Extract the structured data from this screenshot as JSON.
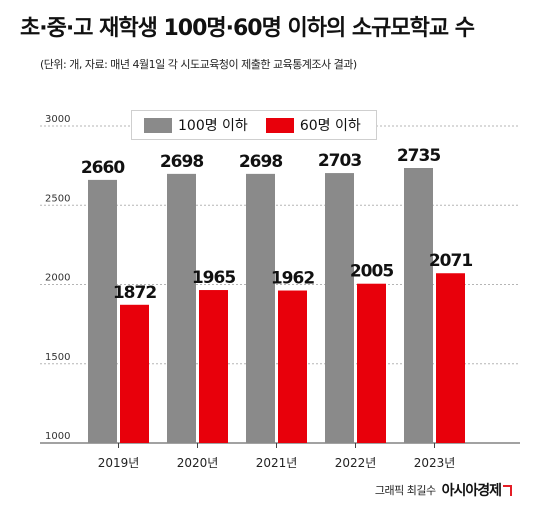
{
  "title": "초·중·고 재학생 100명·60명 이하의 소규모학교 수",
  "subtitle": "(단위: 개, 자료: 매년 4월1일 각 시도교육청이 제출한 교육통계조사 결과)",
  "credit": {
    "author": "그래픽 최길수",
    "brand": "아시아경제"
  },
  "colors": {
    "series_1": "#8a8a8a",
    "series_2": "#e8000b"
  },
  "chart_data": {
    "type": "bar",
    "categories": [
      "2019년",
      "2020년",
      "2021년",
      "2022년",
      "2023년"
    ],
    "series": [
      {
        "name": "100명 이하",
        "values": [
          2660,
          2698,
          2698,
          2703,
          2735
        ]
      },
      {
        "name": "60명 이하",
        "values": [
          1872,
          1965,
          1962,
          2005,
          2071
        ]
      }
    ],
    "yticks": [
      1000,
      1500,
      2000,
      2500,
      3000
    ],
    "ylim": [
      1000,
      3000
    ],
    "grid": true,
    "legend": "top-center"
  }
}
